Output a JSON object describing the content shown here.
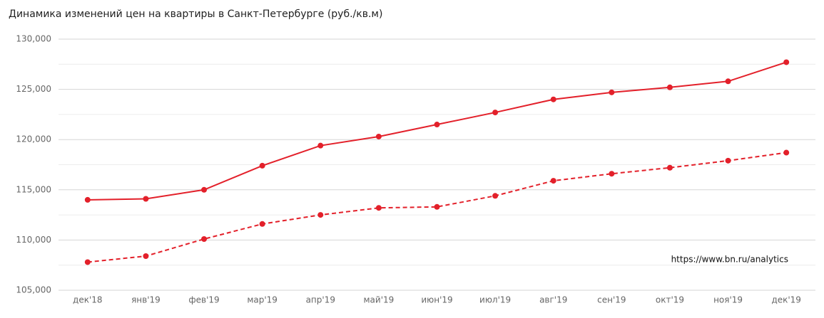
{
  "chart_data": {
    "type": "line",
    "title": "Динамика изменений цен на квартиры в Санкт-Петербурге (руб./кв.м)",
    "annotation": "https://www.bn.ru/analytics",
    "categories": [
      "дек'18",
      "янв'19",
      "фев'19",
      "мар'19",
      "апр'19",
      "май'19",
      "июн'19",
      "июл'19",
      "авг'19",
      "сен'19",
      "окт'19",
      "ноя'19",
      "дек'19"
    ],
    "series": [
      {
        "color": "#e3202a",
        "dash": false,
        "values": [
          114000,
          114100,
          115000,
          117400,
          119400,
          120300,
          121500,
          122700,
          124000,
          124700,
          125200,
          125800,
          127700
        ]
      },
      {
        "color": "#e3202a",
        "dash": true,
        "values": [
          107800,
          108400,
          110100,
          111600,
          112500,
          113200,
          113300,
          114400,
          115900,
          116600,
          117200,
          117900,
          118700
        ]
      }
    ],
    "ylim": [
      105000,
      130000
    ],
    "yticks": [
      {
        "value": 105000,
        "label": "105,000"
      },
      {
        "value": 110000,
        "label": "110,000"
      },
      {
        "value": 115000,
        "label": "115,000"
      },
      {
        "value": 120000,
        "label": "120,000"
      },
      {
        "value": 125000,
        "label": "125,000"
      },
      {
        "value": 130000,
        "label": "130,000"
      }
    ],
    "minor_yticks": [
      107500,
      112500,
      117500,
      122500,
      127500
    ],
    "grid": true
  }
}
